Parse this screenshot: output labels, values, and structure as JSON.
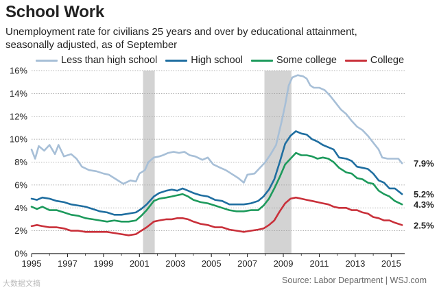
{
  "header": {
    "title": "School Work",
    "subtitle_line1": "Unemployment rate for civilians 25 years and over by educational attainment,",
    "subtitle_line2": "seasonally adjusted, as of September"
  },
  "footer": {
    "source": "Source: Labor Department  |  WSJ.com",
    "watermark": "大数据文摘"
  },
  "chart_data": {
    "type": "line",
    "title": "School Work",
    "subtitle": "Unemployment rate for civilians 25 years and over by educational attainment, seasonally adjusted, as of September",
    "xlabel": "",
    "ylabel": "",
    "xlim": [
      1995,
      2015.75
    ],
    "ylim": [
      0,
      16
    ],
    "x_ticks": [
      "1995",
      "1997",
      "1999",
      "2001",
      "2003",
      "2005",
      "2007",
      "2009",
      "2011",
      "2013",
      "2015"
    ],
    "y_ticks": [
      "0%",
      "2%",
      "4%",
      "6%",
      "8%",
      "10%",
      "12%",
      "14%",
      "16%"
    ],
    "grid": true,
    "legend_position": "top",
    "recessions": [
      [
        2001.2,
        2001.85
      ],
      [
        2007.95,
        2009.45
      ]
    ],
    "series": [
      {
        "name": "Less than high school",
        "color": "#a7bfd7",
        "end_label": "7.9%",
        "points": [
          [
            1995.0,
            9.1
          ],
          [
            1995.2,
            8.3
          ],
          [
            1995.4,
            9.4
          ],
          [
            1995.7,
            9.0
          ],
          [
            1996.0,
            9.5
          ],
          [
            1996.3,
            8.7
          ],
          [
            1996.5,
            9.5
          ],
          [
            1996.8,
            8.5
          ],
          [
            1997.2,
            8.7
          ],
          [
            1997.5,
            8.3
          ],
          [
            1997.8,
            7.6
          ],
          [
            1998.2,
            7.3
          ],
          [
            1998.6,
            7.2
          ],
          [
            1999.0,
            7.0
          ],
          [
            1999.3,
            6.9
          ],
          [
            1999.6,
            6.6
          ],
          [
            1999.9,
            6.3
          ],
          [
            2000.1,
            6.1
          ],
          [
            2000.5,
            6.4
          ],
          [
            2000.8,
            6.3
          ],
          [
            2001.0,
            7.0
          ],
          [
            2001.3,
            7.3
          ],
          [
            2001.5,
            8.0
          ],
          [
            2001.8,
            8.4
          ],
          [
            2002.1,
            8.5
          ],
          [
            2002.3,
            8.6
          ],
          [
            2002.6,
            8.8
          ],
          [
            2002.9,
            8.9
          ],
          [
            2003.2,
            8.8
          ],
          [
            2003.5,
            8.9
          ],
          [
            2003.8,
            8.6
          ],
          [
            2004.1,
            8.5
          ],
          [
            2004.5,
            8.2
          ],
          [
            2004.8,
            8.4
          ],
          [
            2005.1,
            7.8
          ],
          [
            2005.5,
            7.5
          ],
          [
            2005.8,
            7.3
          ],
          [
            2006.1,
            7.0
          ],
          [
            2006.5,
            6.6
          ],
          [
            2006.8,
            6.2
          ],
          [
            2007.0,
            6.9
          ],
          [
            2007.4,
            7.0
          ],
          [
            2007.7,
            7.5
          ],
          [
            2008.0,
            8.0
          ],
          [
            2008.3,
            8.7
          ],
          [
            2008.6,
            9.5
          ],
          [
            2008.9,
            11.5
          ],
          [
            2009.1,
            13.0
          ],
          [
            2009.3,
            14.7
          ],
          [
            2009.5,
            15.4
          ],
          [
            2009.8,
            15.6
          ],
          [
            2010.1,
            15.5
          ],
          [
            2010.3,
            15.3
          ],
          [
            2010.5,
            14.7
          ],
          [
            2010.7,
            14.5
          ],
          [
            2011.0,
            14.5
          ],
          [
            2011.3,
            14.3
          ],
          [
            2011.6,
            13.8
          ],
          [
            2011.9,
            13.2
          ],
          [
            2012.2,
            12.6
          ],
          [
            2012.5,
            12.2
          ],
          [
            2012.8,
            11.6
          ],
          [
            2013.1,
            11.1
          ],
          [
            2013.4,
            10.8
          ],
          [
            2013.7,
            10.3
          ],
          [
            2014.0,
            9.7
          ],
          [
            2014.3,
            9.1
          ],
          [
            2014.5,
            8.4
          ],
          [
            2014.8,
            8.3
          ],
          [
            2015.1,
            8.3
          ],
          [
            2015.4,
            8.3
          ],
          [
            2015.6,
            7.9
          ]
        ]
      },
      {
        "name": "High school",
        "color": "#1f6ea0",
        "end_label": "5.2%",
        "points": [
          [
            1995.0,
            4.8
          ],
          [
            1995.3,
            4.7
          ],
          [
            1995.6,
            4.9
          ],
          [
            1996.0,
            4.8
          ],
          [
            1996.4,
            4.6
          ],
          [
            1996.8,
            4.5
          ],
          [
            1997.2,
            4.3
          ],
          [
            1997.6,
            4.2
          ],
          [
            1998.0,
            4.1
          ],
          [
            1998.4,
            3.9
          ],
          [
            1998.8,
            3.7
          ],
          [
            1999.2,
            3.6
          ],
          [
            1999.6,
            3.4
          ],
          [
            2000.0,
            3.4
          ],
          [
            2000.4,
            3.5
          ],
          [
            2000.8,
            3.6
          ],
          [
            2001.1,
            3.9
          ],
          [
            2001.4,
            4.3
          ],
          [
            2001.8,
            5.0
          ],
          [
            2002.1,
            5.3
          ],
          [
            2002.5,
            5.5
          ],
          [
            2002.8,
            5.6
          ],
          [
            2003.1,
            5.5
          ],
          [
            2003.4,
            5.7
          ],
          [
            2003.7,
            5.5
          ],
          [
            2004.0,
            5.3
          ],
          [
            2004.4,
            5.1
          ],
          [
            2004.8,
            5.0
          ],
          [
            2005.2,
            4.7
          ],
          [
            2005.6,
            4.6
          ],
          [
            2006.0,
            4.3
          ],
          [
            2006.4,
            4.3
          ],
          [
            2006.8,
            4.3
          ],
          [
            2007.2,
            4.4
          ],
          [
            2007.6,
            4.6
          ],
          [
            2007.9,
            5.0
          ],
          [
            2008.2,
            5.6
          ],
          [
            2008.5,
            6.5
          ],
          [
            2008.8,
            8.0
          ],
          [
            2009.1,
            9.6
          ],
          [
            2009.4,
            10.3
          ],
          [
            2009.7,
            10.7
          ],
          [
            2010.0,
            10.5
          ],
          [
            2010.3,
            10.4
          ],
          [
            2010.6,
            10.0
          ],
          [
            2010.9,
            9.8
          ],
          [
            2011.2,
            9.5
          ],
          [
            2011.5,
            9.3
          ],
          [
            2011.8,
            9.1
          ],
          [
            2012.1,
            8.4
          ],
          [
            2012.5,
            8.3
          ],
          [
            2012.8,
            8.1
          ],
          [
            2013.1,
            7.6
          ],
          [
            2013.4,
            7.5
          ],
          [
            2013.7,
            7.4
          ],
          [
            2014.0,
            7.0
          ],
          [
            2014.3,
            6.4
          ],
          [
            2014.6,
            6.2
          ],
          [
            2014.9,
            5.7
          ],
          [
            2015.2,
            5.7
          ],
          [
            2015.6,
            5.2
          ]
        ]
      },
      {
        "name": "Some college",
        "color": "#1d9a5c",
        "end_label": "4.3%",
        "points": [
          [
            1995.0,
            4.1
          ],
          [
            1995.3,
            3.9
          ],
          [
            1995.6,
            4.1
          ],
          [
            1996.0,
            3.8
          ],
          [
            1996.4,
            3.8
          ],
          [
            1996.8,
            3.6
          ],
          [
            1997.2,
            3.4
          ],
          [
            1997.6,
            3.3
          ],
          [
            1998.0,
            3.1
          ],
          [
            1998.4,
            3.0
          ],
          [
            1998.8,
            2.9
          ],
          [
            1999.2,
            2.8
          ],
          [
            1999.6,
            2.9
          ],
          [
            2000.0,
            2.8
          ],
          [
            2000.4,
            2.8
          ],
          [
            2000.8,
            2.9
          ],
          [
            2001.1,
            3.3
          ],
          [
            2001.4,
            3.8
          ],
          [
            2001.8,
            4.6
          ],
          [
            2002.1,
            4.8
          ],
          [
            2002.5,
            4.9
          ],
          [
            2002.8,
            5.0
          ],
          [
            2003.1,
            5.1
          ],
          [
            2003.4,
            5.2
          ],
          [
            2003.7,
            5.0
          ],
          [
            2004.0,
            4.7
          ],
          [
            2004.4,
            4.5
          ],
          [
            2004.8,
            4.4
          ],
          [
            2005.2,
            4.2
          ],
          [
            2005.6,
            4.0
          ],
          [
            2006.0,
            3.8
          ],
          [
            2006.4,
            3.7
          ],
          [
            2006.8,
            3.7
          ],
          [
            2007.2,
            3.8
          ],
          [
            2007.6,
            3.8
          ],
          [
            2007.9,
            4.2
          ],
          [
            2008.2,
            4.8
          ],
          [
            2008.5,
            5.7
          ],
          [
            2008.8,
            6.7
          ],
          [
            2009.1,
            7.8
          ],
          [
            2009.4,
            8.3
          ],
          [
            2009.7,
            8.8
          ],
          [
            2010.0,
            8.6
          ],
          [
            2010.3,
            8.6
          ],
          [
            2010.6,
            8.5
          ],
          [
            2010.9,
            8.3
          ],
          [
            2011.2,
            8.4
          ],
          [
            2011.5,
            8.3
          ],
          [
            2011.8,
            8.0
          ],
          [
            2012.1,
            7.5
          ],
          [
            2012.5,
            7.1
          ],
          [
            2012.8,
            7.0
          ],
          [
            2013.1,
            6.6
          ],
          [
            2013.4,
            6.5
          ],
          [
            2013.7,
            6.2
          ],
          [
            2014.0,
            6.1
          ],
          [
            2014.3,
            5.5
          ],
          [
            2014.6,
            5.2
          ],
          [
            2014.9,
            5.0
          ],
          [
            2015.2,
            4.6
          ],
          [
            2015.6,
            4.3
          ]
        ]
      },
      {
        "name": "College",
        "color": "#c9303a",
        "end_label": "2.5%",
        "points": [
          [
            1995.0,
            2.4
          ],
          [
            1995.3,
            2.5
          ],
          [
            1995.6,
            2.4
          ],
          [
            1996.0,
            2.3
          ],
          [
            1996.4,
            2.3
          ],
          [
            1996.8,
            2.2
          ],
          [
            1997.2,
            2.0
          ],
          [
            1997.6,
            2.0
          ],
          [
            1998.0,
            1.9
          ],
          [
            1998.4,
            1.9
          ],
          [
            1998.8,
            1.9
          ],
          [
            1999.2,
            1.9
          ],
          [
            1999.6,
            1.8
          ],
          [
            2000.0,
            1.7
          ],
          [
            2000.4,
            1.6
          ],
          [
            2000.8,
            1.7
          ],
          [
            2001.1,
            2.0
          ],
          [
            2001.4,
            2.3
          ],
          [
            2001.8,
            2.8
          ],
          [
            2002.1,
            2.9
          ],
          [
            2002.5,
            3.0
          ],
          [
            2002.8,
            3.0
          ],
          [
            2003.1,
            3.1
          ],
          [
            2003.4,
            3.1
          ],
          [
            2003.7,
            3.0
          ],
          [
            2004.0,
            2.8
          ],
          [
            2004.4,
            2.6
          ],
          [
            2004.8,
            2.5
          ],
          [
            2005.2,
            2.3
          ],
          [
            2005.6,
            2.3
          ],
          [
            2006.0,
            2.1
          ],
          [
            2006.4,
            2.0
          ],
          [
            2006.8,
            1.9
          ],
          [
            2007.2,
            2.0
          ],
          [
            2007.6,
            2.1
          ],
          [
            2007.9,
            2.2
          ],
          [
            2008.2,
            2.5
          ],
          [
            2008.5,
            2.9
          ],
          [
            2008.8,
            3.7
          ],
          [
            2009.1,
            4.4
          ],
          [
            2009.4,
            4.8
          ],
          [
            2009.7,
            4.9
          ],
          [
            2010.0,
            4.8
          ],
          [
            2010.3,
            4.7
          ],
          [
            2010.6,
            4.6
          ],
          [
            2010.9,
            4.5
          ],
          [
            2011.2,
            4.4
          ],
          [
            2011.5,
            4.3
          ],
          [
            2011.8,
            4.1
          ],
          [
            2012.1,
            4.0
          ],
          [
            2012.5,
            4.0
          ],
          [
            2012.8,
            3.8
          ],
          [
            2013.1,
            3.8
          ],
          [
            2013.4,
            3.6
          ],
          [
            2013.7,
            3.5
          ],
          [
            2014.0,
            3.2
          ],
          [
            2014.3,
            3.1
          ],
          [
            2014.6,
            2.9
          ],
          [
            2014.9,
            2.9
          ],
          [
            2015.2,
            2.7
          ],
          [
            2015.6,
            2.5
          ]
        ]
      }
    ]
  }
}
